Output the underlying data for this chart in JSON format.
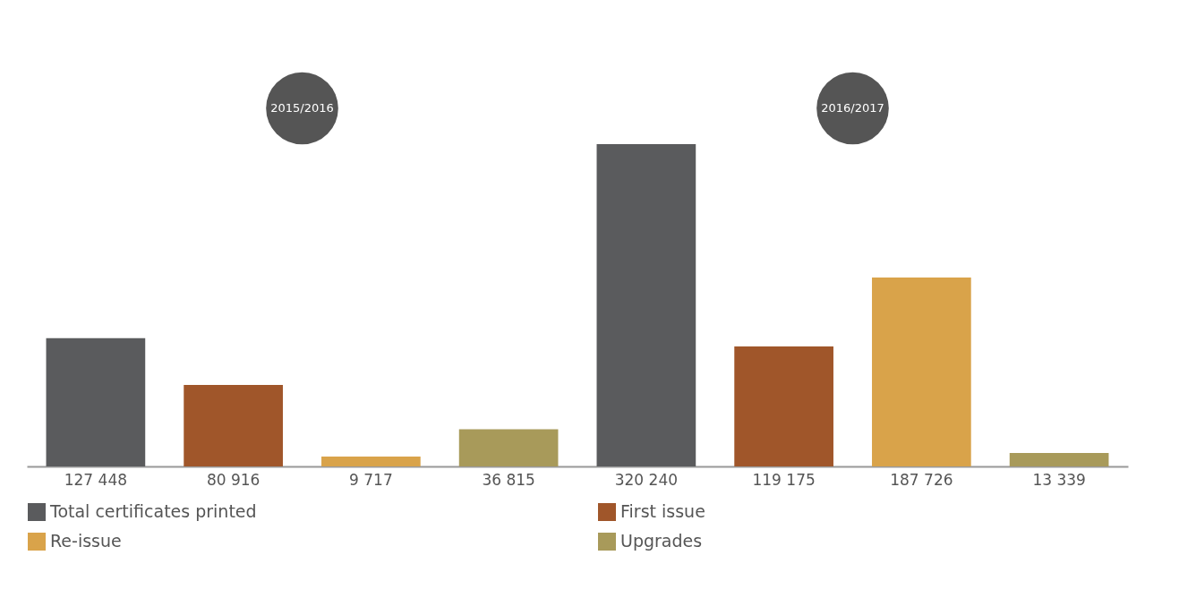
{
  "chart_data": {
    "type": "bar",
    "categories": [
      null,
      null,
      null,
      null,
      null,
      null,
      null,
      null
    ],
    "annotations": [
      "2015/2016",
      "2016/2017"
    ],
    "series": [
      {
        "name": "Total certificates printed",
        "color": "#5a5b5d",
        "values": [
          127448,
          null,
          null,
          null,
          320240,
          null,
          null,
          null
        ],
        "value_labels": [
          "127 448",
          null,
          null,
          null,
          "320 240",
          null,
          null,
          null
        ]
      },
      {
        "name": "First issue",
        "color": "#a0562a",
        "values": [
          null,
          80916,
          null,
          null,
          null,
          119175,
          null,
          null
        ],
        "value_labels": [
          null,
          "80 916",
          null,
          null,
          null,
          "119 175",
          null,
          null
        ]
      },
      {
        "name": "Re-issue",
        "color": "#d9a34a",
        "values": [
          null,
          null,
          9717,
          null,
          null,
          null,
          187726,
          null
        ],
        "value_labels": [
          null,
          null,
          "9 717",
          null,
          null,
          null,
          "187 726",
          null
        ]
      },
      {
        "name": "Upgrades",
        "color": "#a89a5a",
        "values": [
          null,
          null,
          null,
          36815,
          null,
          null,
          null,
          13339
        ],
        "value_labels": [
          null,
          null,
          null,
          "36 815",
          null,
          null,
          null,
          "13 339"
        ]
      }
    ],
    "stacked": true,
    "tick_labels": false,
    "legend": "bottom"
  }
}
